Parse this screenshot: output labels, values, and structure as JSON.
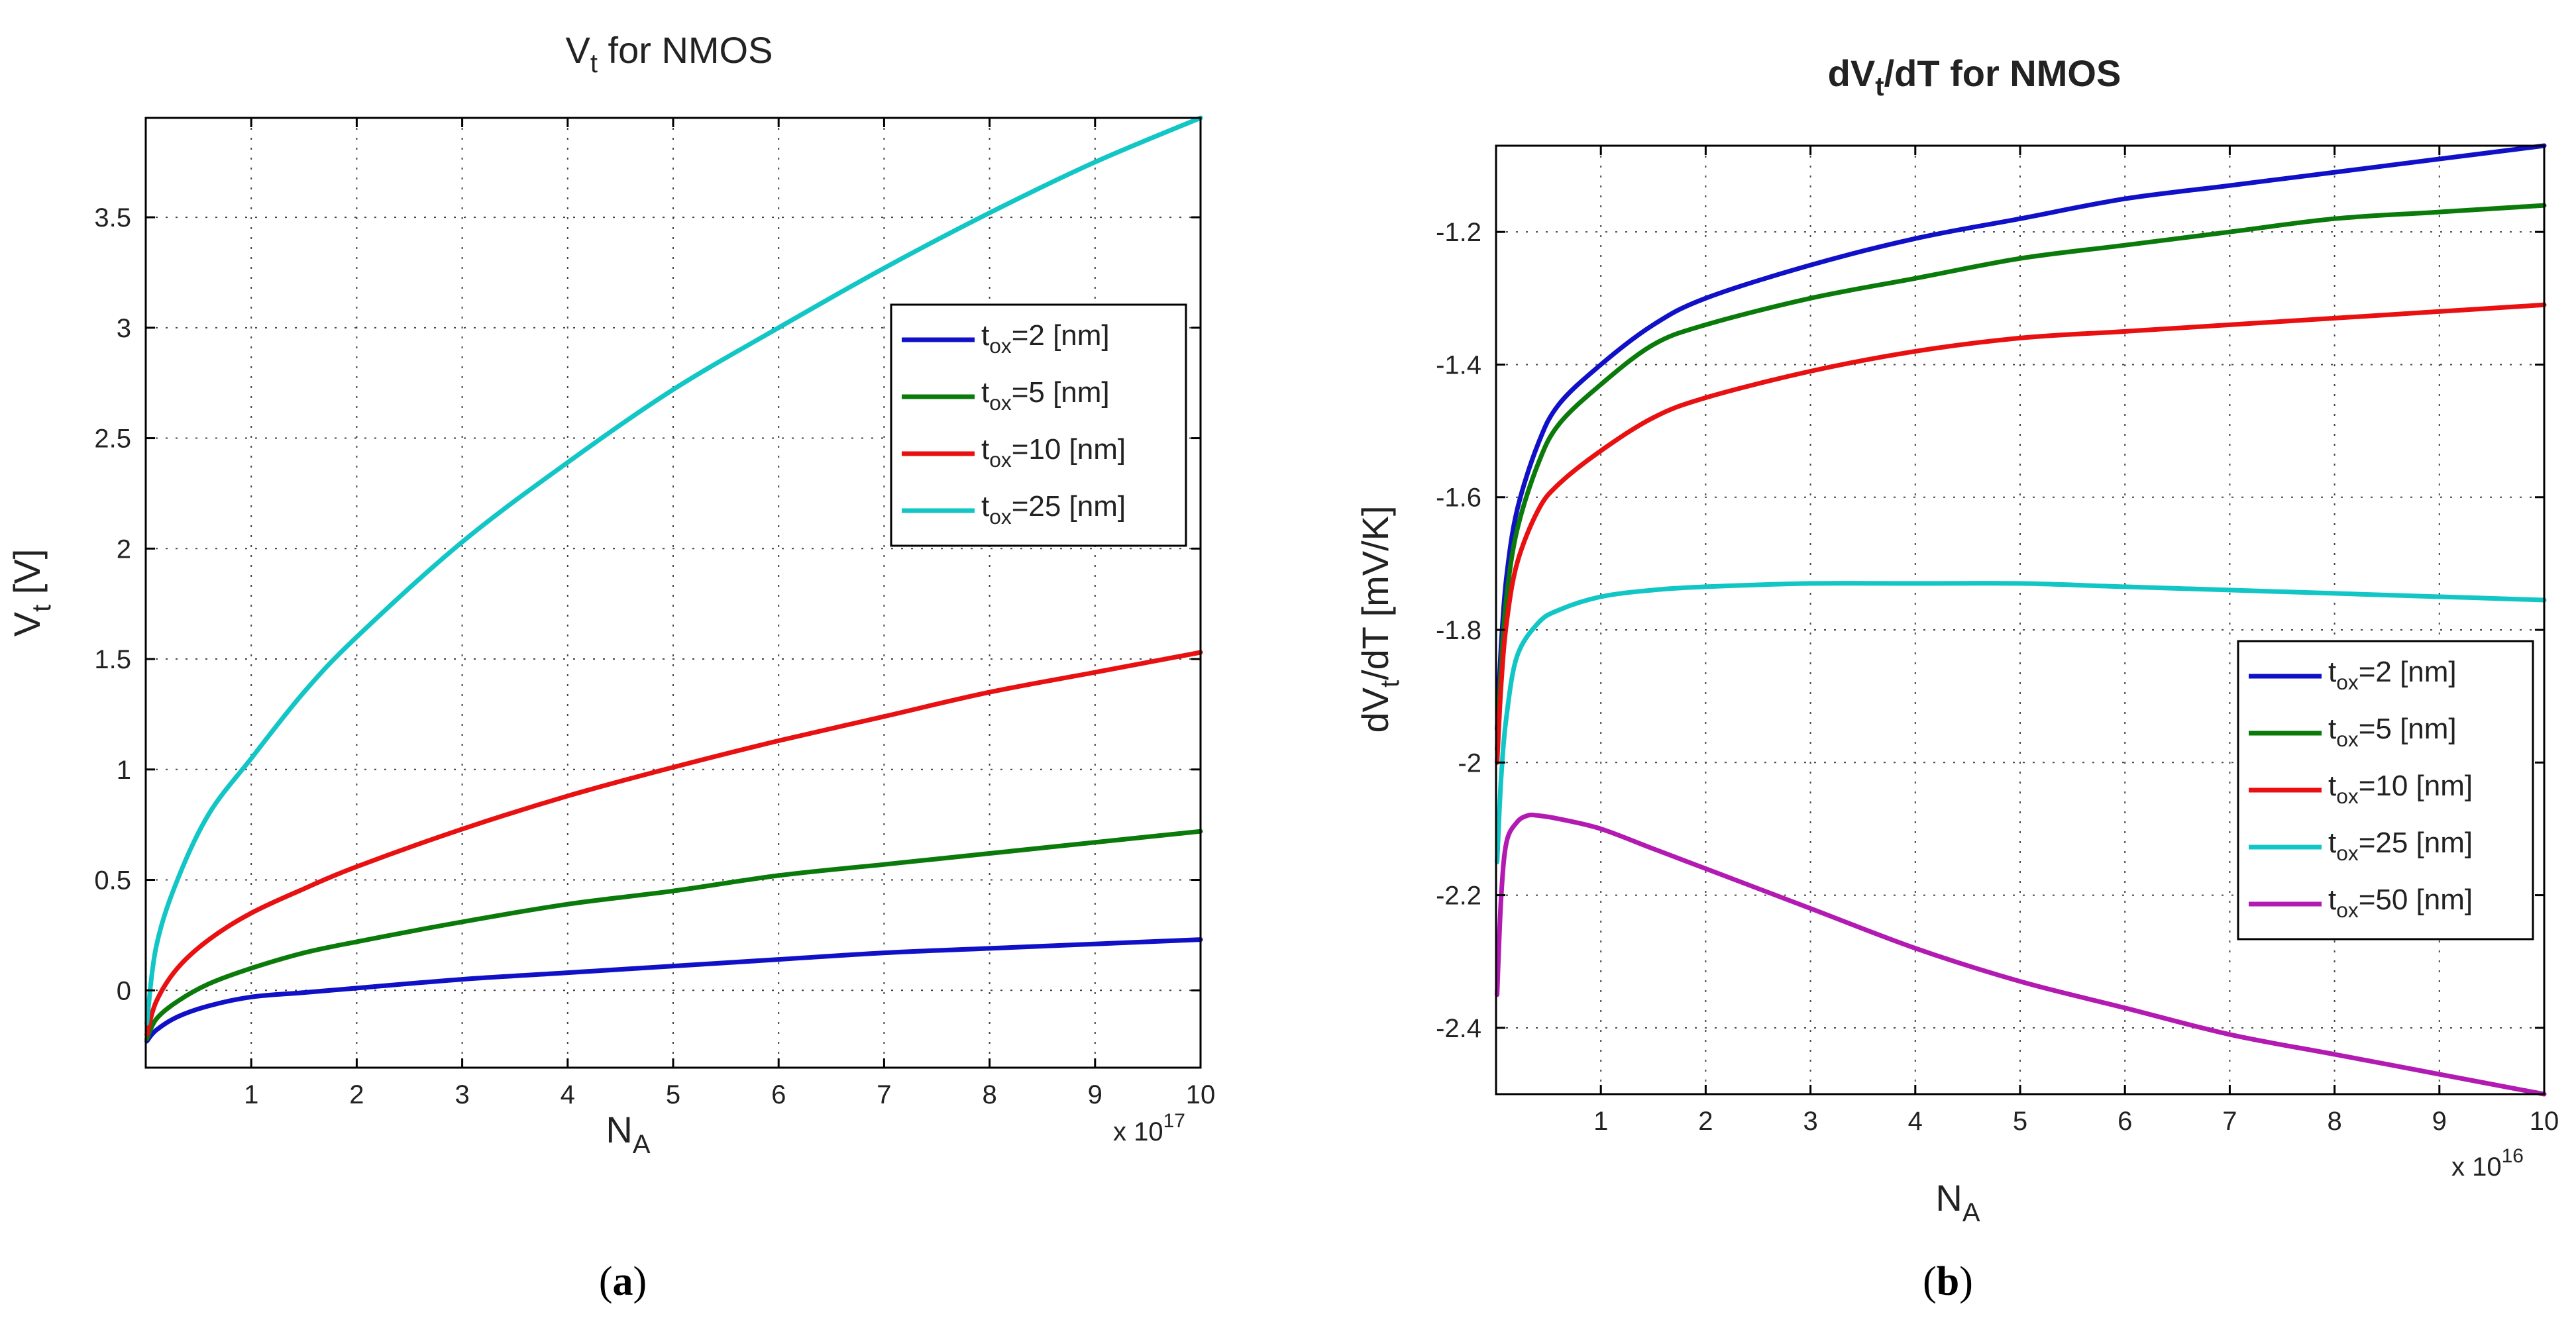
{
  "chart_data": [
    {
      "type": "line",
      "title_main": "V",
      "title_sub": "t",
      "title_rest": " for NMOS",
      "ylabel_main": "V",
      "ylabel_sub": "t",
      "ylabel_rest": " [V]",
      "xlabel_main": "N",
      "xlabel_sub": "A",
      "x_multiplier_base": "x 10",
      "x_multiplier_exp": "17",
      "caption": "(a)",
      "caption_open": "(",
      "caption_letter": "a",
      "caption_close": ")",
      "xlim": [
        0,
        10
      ],
      "ylim": [
        -0.35,
        3.95
      ],
      "xticks": [
        1,
        2,
        3,
        4,
        5,
        6,
        7,
        8,
        9,
        10
      ],
      "xtick_labels": [
        "1",
        "2",
        "3",
        "4",
        "5",
        "6",
        "7",
        "8",
        "9",
        "10"
      ],
      "yticks": [
        0,
        0.5,
        1,
        1.5,
        2,
        2.5,
        3,
        3.5
      ],
      "ytick_labels": [
        "0",
        "0.5",
        "1",
        "1.5",
        "2",
        "2.5",
        "3",
        "3.5"
      ],
      "grid": true,
      "legend_position": "upper-right",
      "series": [
        {
          "name": "tox=2 [nm]",
          "label_main": "t",
          "label_sub": "ox",
          "label_rest": "=2 [nm]",
          "color": "#1010c8",
          "x": [
            0.01,
            0.1,
            0.3,
            0.6,
            1,
            1.5,
            2,
            3,
            4,
            5,
            6,
            7,
            8,
            9,
            10
          ],
          "y": [
            -0.23,
            -0.18,
            -0.12,
            -0.07,
            -0.03,
            -0.01,
            0.01,
            0.05,
            0.08,
            0.11,
            0.14,
            0.17,
            0.19,
            0.21,
            0.23
          ]
        },
        {
          "name": "tox=5 [nm]",
          "label_main": "t",
          "label_sub": "ox",
          "label_rest": "=5 [nm]",
          "color": "#0a7a0a",
          "x": [
            0.01,
            0.1,
            0.3,
            0.6,
            1,
            1.5,
            2,
            3,
            4,
            5,
            6,
            7,
            8,
            9,
            10
          ],
          "y": [
            -0.22,
            -0.13,
            -0.05,
            0.03,
            0.1,
            0.17,
            0.22,
            0.31,
            0.39,
            0.45,
            0.52,
            0.57,
            0.62,
            0.67,
            0.72
          ]
        },
        {
          "name": "tox=10 [nm]",
          "label_main": "t",
          "label_sub": "ox",
          "label_rest": "=10 [nm]",
          "color": "#e81010",
          "x": [
            0.01,
            0.1,
            0.3,
            0.6,
            1,
            1.5,
            2,
            3,
            4,
            5,
            6,
            7,
            8,
            9,
            10
          ],
          "y": [
            -0.2,
            -0.05,
            0.1,
            0.23,
            0.35,
            0.46,
            0.56,
            0.73,
            0.88,
            1.01,
            1.13,
            1.24,
            1.35,
            1.44,
            1.53
          ]
        },
        {
          "name": "tox=25 [nm]",
          "label_main": "t",
          "label_sub": "ox",
          "label_rest": "=25 [nm]",
          "color": "#12c6c6",
          "x": [
            0.01,
            0.1,
            0.3,
            0.6,
            1,
            1.5,
            2,
            3,
            4,
            5,
            6,
            7,
            8,
            9,
            10
          ],
          "y": [
            -0.15,
            0.2,
            0.5,
            0.8,
            1.05,
            1.35,
            1.6,
            2.03,
            2.39,
            2.72,
            3.0,
            3.27,
            3.52,
            3.75,
            3.95
          ]
        }
      ]
    },
    {
      "type": "line",
      "title_main": "dV",
      "title_sub": "t",
      "title_rest": "/dT for NMOS",
      "ylabel_main": "dV",
      "ylabel_sub": "t",
      "ylabel_rest": "/dT [mV/K]",
      "xlabel_main": "N",
      "xlabel_sub": "A",
      "x_multiplier_base": "x 10",
      "x_multiplier_exp": "16",
      "caption": "(b)",
      "caption_open": "(",
      "caption_letter": "b",
      "caption_close": ")",
      "xlim": [
        0,
        10
      ],
      "ylim": [
        -2.5,
        -1.07
      ],
      "xticks": [
        1,
        2,
        3,
        4,
        5,
        6,
        7,
        8,
        9,
        10
      ],
      "xtick_labels": [
        "1",
        "2",
        "3",
        "4",
        "5",
        "6",
        "7",
        "8",
        "9",
        "10"
      ],
      "yticks": [
        -2.4,
        -2.2,
        -2,
        -1.8,
        -1.6,
        -1.4,
        -1.2
      ],
      "ytick_labels": [
        "-2.4",
        "-2.2",
        "-2",
        "-1.8",
        "-1.6",
        "-1.4",
        "-1.2"
      ],
      "grid": true,
      "legend_position": "lower-right",
      "series": [
        {
          "name": "tox=2 [nm]",
          "label_main": "t",
          "label_sub": "ox",
          "label_rest": "=2 [nm]",
          "color": "#1010c8",
          "x": [
            0.01,
            0.05,
            0.1,
            0.2,
            0.4,
            0.6,
            1,
            1.5,
            2,
            3,
            4,
            5,
            6,
            7,
            8,
            9,
            10
          ],
          "y": [
            -1.95,
            -1.82,
            -1.72,
            -1.62,
            -1.52,
            -1.46,
            -1.4,
            -1.34,
            -1.3,
            -1.25,
            -1.21,
            -1.18,
            -1.15,
            -1.13,
            -1.11,
            -1.09,
            -1.07
          ]
        },
        {
          "name": "tox=5 [nm]",
          "label_main": "t",
          "label_sub": "ox",
          "label_rest": "=5 [nm]",
          "color": "#0a7a0a",
          "x": [
            0.01,
            0.05,
            0.1,
            0.2,
            0.4,
            0.6,
            1,
            1.5,
            2,
            3,
            4,
            5,
            6,
            7,
            8,
            9,
            10
          ],
          "y": [
            -1.98,
            -1.85,
            -1.75,
            -1.65,
            -1.55,
            -1.49,
            -1.43,
            -1.37,
            -1.34,
            -1.3,
            -1.27,
            -1.24,
            -1.22,
            -1.2,
            -1.18,
            -1.17,
            -1.16
          ]
        },
        {
          "name": "tox=10 [nm]",
          "label_main": "t",
          "label_sub": "ox",
          "label_rest": "=10 [nm]",
          "color": "#e81010",
          "x": [
            0.01,
            0.05,
            0.1,
            0.2,
            0.4,
            0.6,
            1,
            1.5,
            2,
            3,
            4,
            5,
            6,
            7,
            8,
            9,
            10
          ],
          "y": [
            -2.0,
            -1.88,
            -1.79,
            -1.7,
            -1.62,
            -1.58,
            -1.53,
            -1.48,
            -1.45,
            -1.41,
            -1.38,
            -1.36,
            -1.35,
            -1.34,
            -1.33,
            -1.32,
            -1.31
          ]
        },
        {
          "name": "tox=25 [nm]",
          "label_main": "t",
          "label_sub": "ox",
          "label_rest": "=25 [nm]",
          "color": "#12c6c6",
          "x": [
            0.01,
            0.05,
            0.1,
            0.2,
            0.4,
            0.6,
            1,
            1.5,
            2,
            3,
            4,
            5,
            6,
            7,
            8,
            9,
            10
          ],
          "y": [
            -2.15,
            -2.02,
            -1.93,
            -1.84,
            -1.79,
            -1.77,
            -1.75,
            -1.74,
            -1.735,
            -1.73,
            -1.73,
            -1.73,
            -1.735,
            -1.74,
            -1.745,
            -1.75,
            -1.755
          ]
        },
        {
          "name": "tox=50 [nm]",
          "label_main": "t",
          "label_sub": "ox",
          "label_rest": "=50 [nm]",
          "color": "#b21ab2",
          "x": [
            0.01,
            0.05,
            0.1,
            0.2,
            0.3,
            0.4,
            0.6,
            1,
            1.5,
            2,
            3,
            4,
            5,
            6,
            7,
            8,
            9,
            10
          ],
          "y": [
            -2.35,
            -2.2,
            -2.12,
            -2.09,
            -2.08,
            -2.08,
            -2.085,
            -2.1,
            -2.13,
            -2.16,
            -2.22,
            -2.28,
            -2.33,
            -2.37,
            -2.41,
            -2.44,
            -2.47,
            -2.5
          ]
        }
      ]
    }
  ]
}
